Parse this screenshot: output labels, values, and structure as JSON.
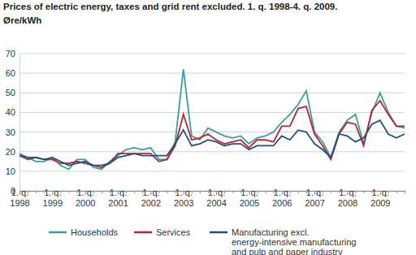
{
  "chart_data": {
    "type": "line",
    "title": "Prices of electric energy, taxes and grid rent excluded. 1. q. 1998-4. q. 2009.",
    "subtitle": "Øre/kWh",
    "categories": [
      "1. q. 1998",
      null,
      null,
      null,
      "1. q. 1999",
      null,
      null,
      null,
      "1. q. 2000",
      null,
      null,
      null,
      "1. q. 2001",
      null,
      null,
      null,
      "1. q. 2002",
      null,
      null,
      null,
      "1. q. 2003",
      null,
      null,
      null,
      "1. q. 2004",
      null,
      null,
      null,
      "1. q. 2005",
      null,
      null,
      null,
      "1. q. 2006",
      null,
      null,
      null,
      "1. q. 2007",
      null,
      null,
      null,
      "1. q. 2008",
      null,
      null,
      null,
      "1. q. 2009",
      null,
      null,
      null
    ],
    "series": [
      {
        "name": "Households",
        "color": "#3a9e9c",
        "values": [
          19,
          17,
          15,
          15,
          17,
          13,
          11,
          16,
          16,
          12,
          11,
          15,
          18,
          21,
          22,
          21,
          22,
          16,
          16,
          25,
          62,
          28,
          26,
          32,
          30,
          28,
          27,
          28,
          24,
          27,
          28,
          30,
          35,
          39,
          44,
          51,
          30,
          25,
          17,
          30,
          36,
          39,
          24,
          40,
          50,
          40,
          33,
          32
        ]
      },
      {
        "name": "Services",
        "color": "#b8252c",
        "values": [
          18,
          16,
          17,
          16,
          16,
          14,
          14,
          15,
          14,
          13,
          12,
          14,
          19,
          19,
          19,
          19,
          19,
          15,
          16,
          23,
          39,
          26,
          27,
          29,
          26,
          24,
          25,
          26,
          22,
          26,
          26,
          25,
          33,
          33,
          42,
          43,
          29,
          23,
          16,
          29,
          35,
          34,
          23,
          41,
          46,
          39,
          33,
          33
        ]
      },
      {
        "name": "Manufacturing excl. energy-intensive manufacturing and pulp and paper industry",
        "color": "#1f4f8a",
        "values": [
          18,
          17,
          17,
          16,
          17,
          15,
          13,
          14,
          15,
          13,
          13,
          14,
          17,
          18,
          19,
          18,
          18,
          18,
          18,
          24,
          31,
          23,
          24,
          26,
          25,
          23,
          24,
          24,
          21,
          23,
          23,
          23,
          28,
          26,
          31,
          30,
          24,
          21,
          17,
          29,
          28,
          25,
          27,
          34,
          36,
          29,
          27,
          29
        ]
      }
    ],
    "ylim": [
      0,
      70
    ],
    "yticks": [
      0,
      10,
      20,
      30,
      40,
      50,
      60,
      70
    ],
    "grid": true,
    "legend": "bottom"
  }
}
